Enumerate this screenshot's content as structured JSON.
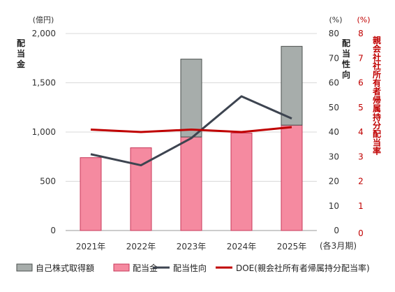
{
  "chart_data": {
    "type": "bar",
    "categories": [
      "2021年",
      "2022年",
      "2023年",
      "2024年",
      "2025年"
    ],
    "x_note": "(各3月期)",
    "series": [
      {
        "name": "自己株式取得額",
        "type": "bar-stacked",
        "axis": "left",
        "color": "#a7adab",
        "values": [
          0,
          0,
          790,
          0,
          800
        ]
      },
      {
        "name": "配当金",
        "type": "bar",
        "axis": "left",
        "color": "#f58aa0",
        "values": [
          740,
          840,
          950,
          990,
          1070
        ]
      },
      {
        "name": "配当性向",
        "type": "line",
        "axis": "right1",
        "color": "#3d4450",
        "values": [
          31,
          26.5,
          37.5,
          54.5,
          45.5
        ]
      },
      {
        "name": "DOE(親会社所有者帰属持分配当率)",
        "type": "line",
        "axis": "right2",
        "color": "#c00000",
        "values": [
          4.1,
          4.0,
          4.1,
          4.0,
          4.2
        ]
      }
    ],
    "axes": {
      "left": {
        "unit": "(億円)",
        "label": "配当金",
        "range": [
          0,
          2000
        ],
        "ticks": [
          "0",
          "500",
          "1,000",
          "1,500",
          "2,000"
        ]
      },
      "right1": {
        "unit": "(%)",
        "label": "配当性向",
        "range": [
          0,
          80
        ],
        "ticks": [
          "0",
          "10",
          "20",
          "30",
          "40",
          "50",
          "60",
          "70",
          "80"
        ]
      },
      "right2": {
        "unit": "(%)",
        "label": "親会社社所有者帰属持分配当率",
        "range": [
          0,
          8
        ],
        "ticks": [
          "0",
          "1",
          "2",
          "3",
          "4",
          "5",
          "6",
          "7",
          "8"
        ]
      }
    },
    "grid": true,
    "legend": "bottom"
  }
}
